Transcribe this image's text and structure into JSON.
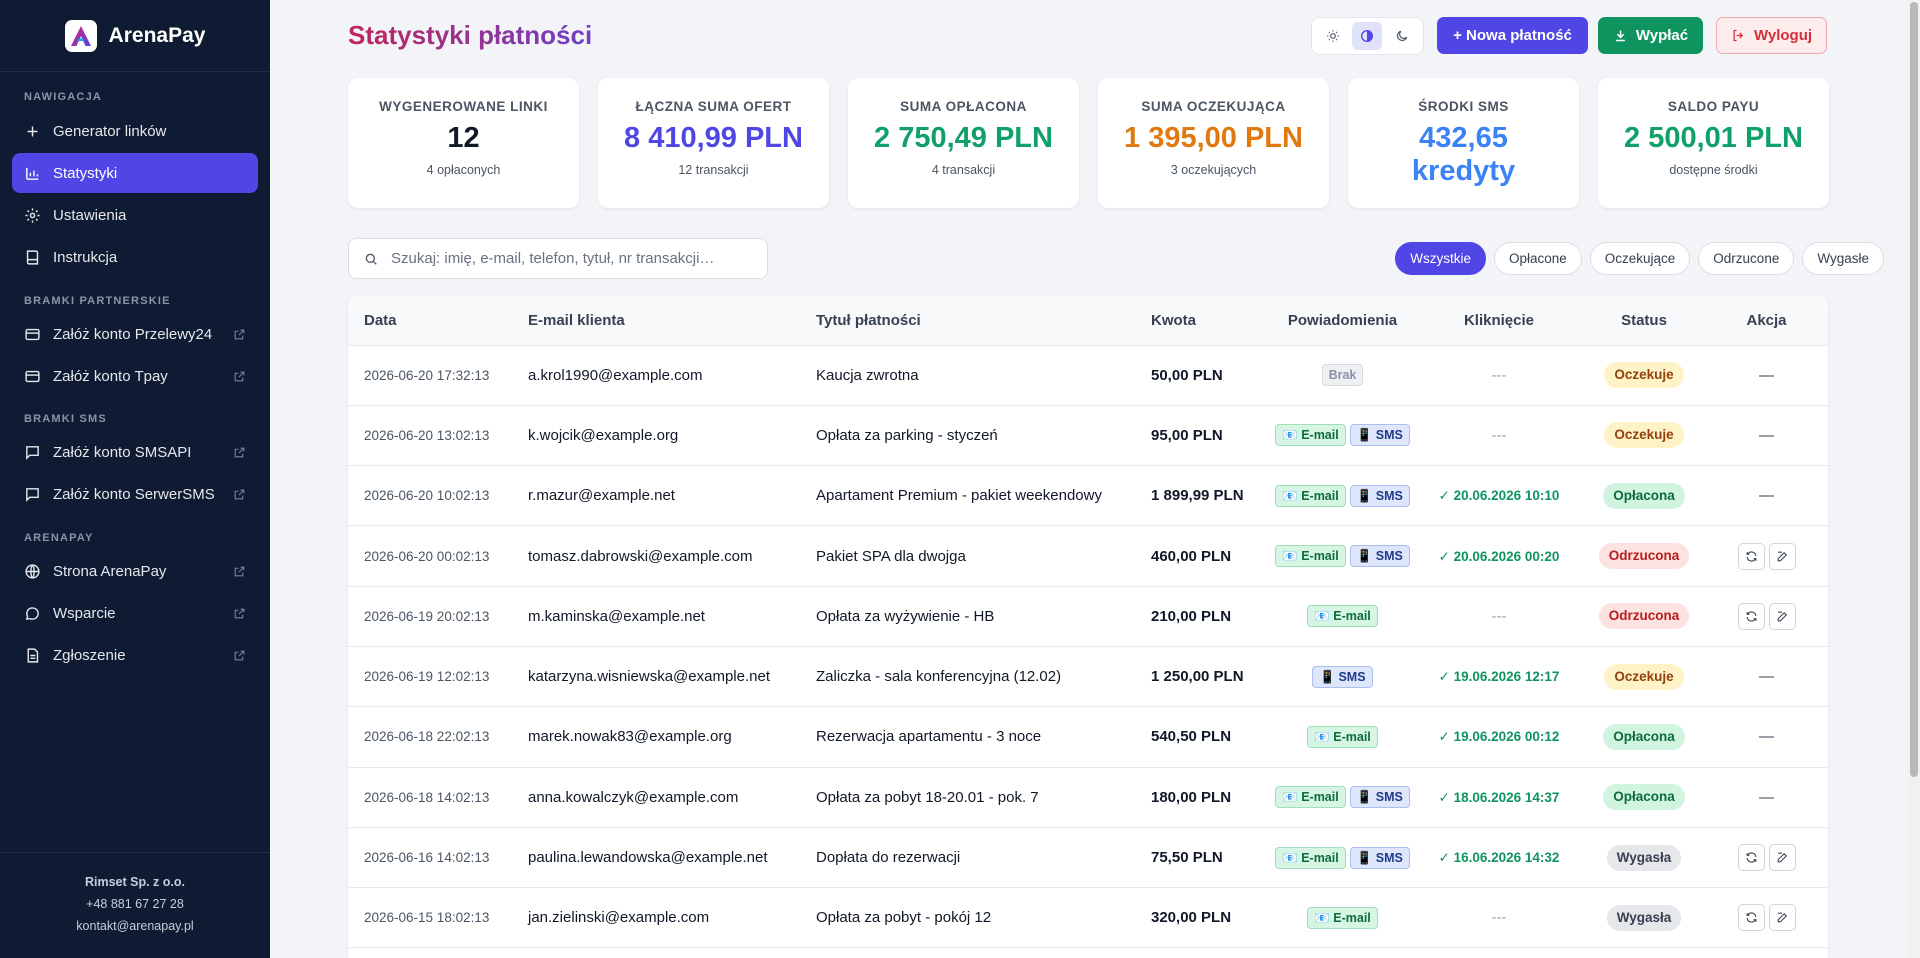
{
  "brand": {
    "name": "ArenaPay"
  },
  "sidebar": {
    "sections": [
      {
        "title": "NAWIGACJA"
      },
      {
        "title": "BRAMKI PARTNERSKIE"
      },
      {
        "title": "BRAMKI SMS"
      },
      {
        "title": "ARENAPAY"
      }
    ],
    "items": [
      {
        "label": "Generator linków",
        "icon": "plus-icon"
      },
      {
        "label": "Statystyki",
        "icon": "bar-chart-icon",
        "active": true
      },
      {
        "label": "Ustawienia",
        "icon": "gear-icon"
      },
      {
        "label": "Instrukcja",
        "icon": "book-icon"
      },
      {
        "label": "Załóż konto Przelewy24",
        "icon": "card-icon",
        "external": true
      },
      {
        "label": "Załóż konto Tpay",
        "icon": "card-icon",
        "external": true
      },
      {
        "label": "Załóż konto SMSAPI",
        "icon": "message-icon",
        "external": true
      },
      {
        "label": "Załóż konto SerwerSMS",
        "icon": "message-icon",
        "external": true
      },
      {
        "label": "Strona ArenaPay",
        "icon": "globe-icon",
        "external": true
      },
      {
        "label": "Wsparcie",
        "icon": "chat-icon",
        "external": true
      },
      {
        "label": "Zgłoszenie",
        "icon": "document-icon",
        "external": true
      }
    ],
    "footer": {
      "company": "Rimset Sp. z o.o.",
      "phone": "+48 881 67 27 28",
      "email": "kontakt@arenapay.pl"
    }
  },
  "header": {
    "title": "Statystyki płatności",
    "new_payment": "+ Nowa płatność",
    "withdraw": "Wypłać",
    "logout": "Wyloguj"
  },
  "cards": [
    {
      "label": "WYGENEROWANE LINKI",
      "value": "12",
      "sub": "4 opłaconych",
      "color": "#111827"
    },
    {
      "label": "ŁĄCZNA SUMA OFERT",
      "value": "8 410,99 PLN",
      "sub": "12 transakcji",
      "color": "#4f46e5"
    },
    {
      "label": "SUMA OPŁACONA",
      "value": "2 750,49 PLN",
      "sub": "4 transakcji",
      "color": "#10a06a"
    },
    {
      "label": "SUMA OCZEKUJĄCA",
      "value": "1 395,00 PLN",
      "sub": "3 oczekujących",
      "color": "#e07a10"
    },
    {
      "label": "ŚRODKI SMS",
      "value": "432,65 kredyty",
      "sub": "",
      "color": "#3b82f6"
    },
    {
      "label": "SALDO PAYU",
      "value": "2 500,01 PLN",
      "sub": "dostępne środki",
      "color": "#10a06a"
    }
  ],
  "search": {
    "placeholder": "Szukaj: imię, e-mail, telefon, tytuł, nr transakcji…"
  },
  "filters": [
    "Wszystkie",
    "Opłacone",
    "Oczekujące",
    "Odrzucone",
    "Wygasłe"
  ],
  "table": {
    "columns": [
      "Data",
      "E-mail klienta",
      "Tytuł płatności",
      "Kwota",
      "Powiadomienia",
      "Kliknięcie",
      "Status",
      "Akcja"
    ],
    "none_tag": "Brak",
    "email_tag": "📧 E-mail",
    "sms_tag": "📱 SMS",
    "no_click": "---",
    "no_action": "—",
    "rows": [
      {
        "date": "2026-06-20 17:32:13",
        "email": "a.krol1990@example.com",
        "title": "Kaucja zwrotna",
        "amount": "50,00 PLN",
        "notif": [],
        "click": "",
        "status": "Oczekuje",
        "status_type": "pending",
        "actions": false
      },
      {
        "date": "2026-06-20 13:02:13",
        "email": "k.wojcik@example.org",
        "title": "Opłata za parking - styczeń",
        "amount": "95,00 PLN",
        "notif": [
          "email",
          "sms"
        ],
        "click": "",
        "status": "Oczekuje",
        "status_type": "pending",
        "actions": false
      },
      {
        "date": "2026-06-20 10:02:13",
        "email": "r.mazur@example.net",
        "title": "Apartament Premium - pakiet weekendowy",
        "amount": "1 899,99 PLN",
        "notif": [
          "email",
          "sms"
        ],
        "click": "✓ 20.06.2026 10:10",
        "status": "Opłacona",
        "status_type": "paid",
        "actions": false
      },
      {
        "date": "2026-06-20 00:02:13",
        "email": "tomasz.dabrowski@example.com",
        "title": "Pakiet SPA dla dwojga",
        "amount": "460,00 PLN",
        "notif": [
          "email",
          "sms"
        ],
        "click": "✓ 20.06.2026 00:20",
        "status": "Odrzucona",
        "status_type": "rejected",
        "actions": true
      },
      {
        "date": "2026-06-19 20:02:13",
        "email": "m.kaminska@example.net",
        "title": "Opłata za wyżywienie - HB",
        "amount": "210,00 PLN",
        "notif": [
          "email"
        ],
        "click": "",
        "status": "Odrzucona",
        "status_type": "rejected",
        "actions": true
      },
      {
        "date": "2026-06-19 12:02:13",
        "email": "katarzyna.wisniewska@example.net",
        "title": "Zaliczka - sala konferencyjna (12.02)",
        "amount": "1 250,00 PLN",
        "notif": [
          "sms"
        ],
        "click": "✓ 19.06.2026 12:17",
        "status": "Oczekuje",
        "status_type": "pending",
        "actions": false
      },
      {
        "date": "2026-06-18 22:02:13",
        "email": "marek.nowak83@example.org",
        "title": "Rezerwacja apartamentu - 3 noce",
        "amount": "540,50 PLN",
        "notif": [
          "email"
        ],
        "click": "✓ 19.06.2026 00:12",
        "status": "Opłacona",
        "status_type": "paid",
        "actions": false
      },
      {
        "date": "2026-06-18 14:02:13",
        "email": "anna.kowalczyk@example.com",
        "title": "Opłata za pobyt 18-20.01 - pok. 7",
        "amount": "180,00 PLN",
        "notif": [
          "email",
          "sms"
        ],
        "click": "✓ 18.06.2026 14:37",
        "status": "Opłacona",
        "status_type": "paid",
        "actions": false
      },
      {
        "date": "2026-06-16 14:02:13",
        "email": "paulina.lewandowska@example.net",
        "title": "Dopłata do rezerwacji",
        "amount": "75,50 PLN",
        "notif": [
          "email",
          "sms"
        ],
        "click": "✓ 16.06.2026 14:32",
        "status": "Wygasła",
        "status_type": "expired",
        "actions": true
      },
      {
        "date": "2026-06-15 18:02:13",
        "email": "jan.zielinski@example.com",
        "title": "Opłata za pobyt - pokój 12",
        "amount": "320,00 PLN",
        "notif": [
          "email"
        ],
        "click": "",
        "status": "Wygasła",
        "status_type": "expired",
        "actions": true
      }
    ]
  }
}
